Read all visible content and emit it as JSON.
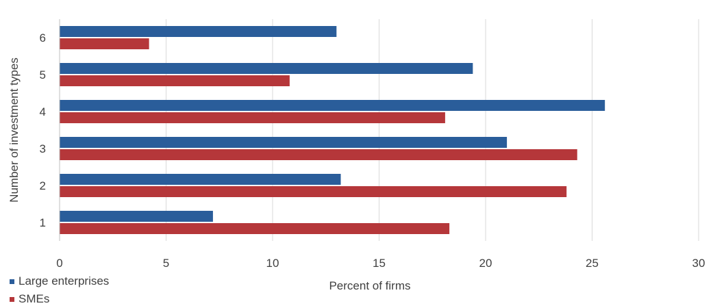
{
  "chart_data": {
    "type": "bar",
    "orientation": "horizontal",
    "categories": [
      "1",
      "2",
      "3",
      "4",
      "5",
      "6"
    ],
    "series": [
      {
        "name": "Large enterprises",
        "color": "#2a5d9a",
        "values": [
          7.2,
          13.2,
          21.0,
          25.6,
          19.4,
          13.0
        ]
      },
      {
        "name": "SMEs",
        "color": "#b5373a",
        "values": [
          18.3,
          23.8,
          24.3,
          18.1,
          10.8,
          4.2
        ]
      }
    ],
    "xlabel": "Percent of firms",
    "ylabel": "Number of investment types",
    "xlim": [
      0,
      30
    ],
    "xticks": [
      0,
      5,
      10,
      15,
      20,
      25,
      30
    ],
    "grid": "vertical",
    "legend_position": "bottom-left"
  }
}
